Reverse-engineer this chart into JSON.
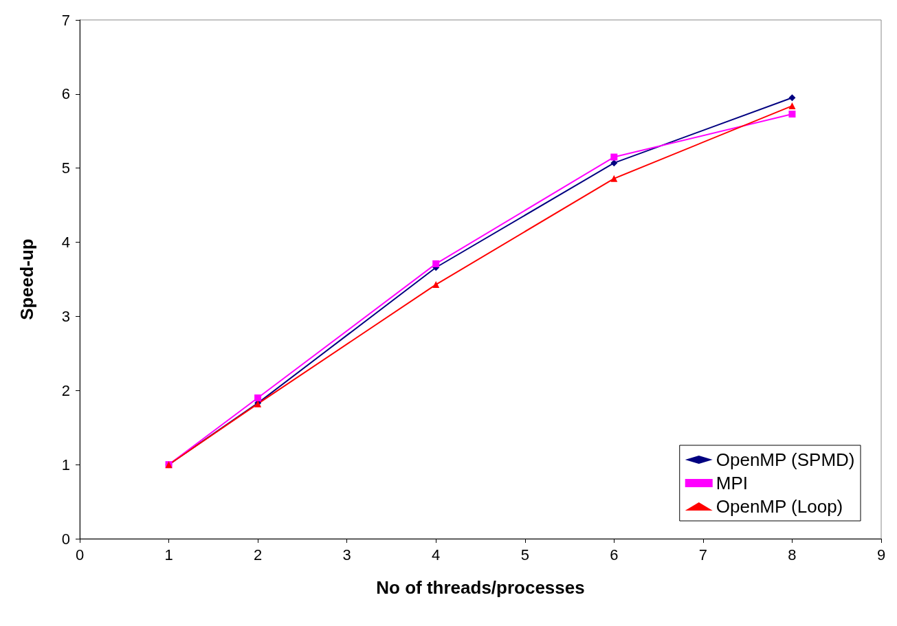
{
  "chart_data": {
    "type": "line",
    "xlabel": "No of threads/processes",
    "ylabel": "Speed-up",
    "x": [
      1,
      2,
      4,
      6,
      8
    ],
    "series": [
      {
        "name": "OpenMP (SPMD)",
        "color": "#000080",
        "marker": "diamond",
        "values": [
          1,
          1.83,
          3.66,
          5.07,
          5.95
        ]
      },
      {
        "name": "MPI",
        "color": "#ff00ff",
        "marker": "square",
        "values": [
          1,
          1.9,
          3.71,
          5.15,
          5.73
        ]
      },
      {
        "name": "OpenMP (Loop)",
        "color": "#ff0000",
        "marker": "triangle",
        "values": [
          1,
          1.82,
          3.43,
          4.86,
          5.84
        ]
      }
    ],
    "xlim": [
      0,
      9
    ],
    "xticks": [
      0,
      1,
      2,
      3,
      4,
      5,
      6,
      7,
      8,
      9
    ],
    "ylim": [
      0,
      7
    ],
    "yticks": [
      0,
      1,
      2,
      3,
      4,
      5,
      6,
      7
    ],
    "grid": false,
    "legend": "bottom right",
    "line_style": "solid"
  }
}
